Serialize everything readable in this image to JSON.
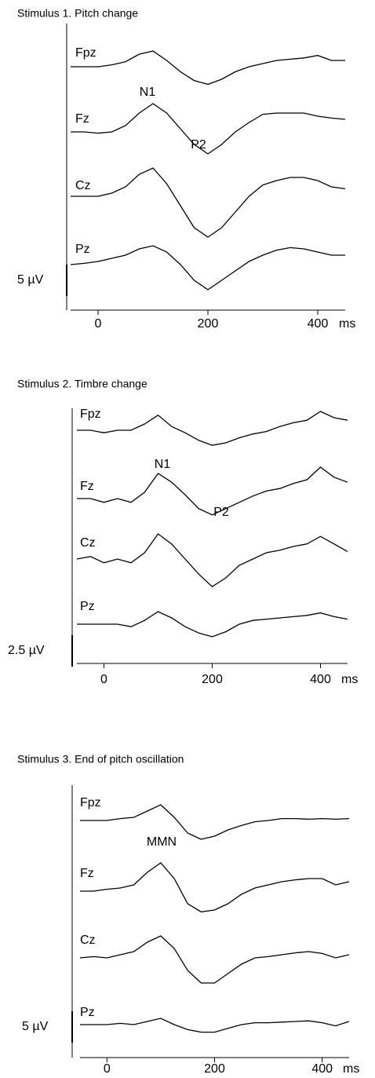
{
  "chart_data": [
    {
      "type": "line",
      "title": "Stimulus 1. Pitch change",
      "x_label": "ms",
      "y_inverted": true,
      "color": "#000000",
      "xlim": [
        -50,
        450
      ],
      "xticks": [
        0,
        200,
        400
      ],
      "scale_bar": {
        "value": 5,
        "label": "5 µV"
      },
      "annotations": [
        "N1",
        "P2"
      ],
      "x": [
        -50,
        -25,
        0,
        25,
        50,
        75,
        100,
        125,
        150,
        175,
        200,
        225,
        250,
        275,
        300,
        325,
        350,
        375,
        400,
        425,
        450
      ],
      "series": [
        {
          "name": "Fpz",
          "values": [
            0,
            0,
            0,
            -0.3,
            -0.8,
            -2,
            -2.5,
            -1,
            0.8,
            2.2,
            2.8,
            2,
            0.8,
            0,
            -0.5,
            -1,
            -1.2,
            -1.4,
            -1.8,
            -1,
            -1
          ]
        },
        {
          "name": "Fz",
          "values": [
            0,
            0,
            0.2,
            0,
            -1,
            -3,
            -4.5,
            -3,
            -0.5,
            2,
            3.5,
            2,
            0,
            -1.5,
            -2.8,
            -3,
            -3,
            -3,
            -2.5,
            -2.2,
            -2
          ]
        },
        {
          "name": "Cz",
          "values": [
            0,
            0,
            0,
            -0.5,
            -1.5,
            -3.5,
            -4.5,
            -2,
            1.5,
            5,
            6.5,
            5,
            2.5,
            0,
            -1.8,
            -2.5,
            -3,
            -3,
            -2.5,
            -1.5,
            -1.2
          ]
        },
        {
          "name": "Pz",
          "values": [
            0.5,
            0.3,
            0,
            -0.5,
            -1,
            -2,
            -2.5,
            -1.5,
            0.5,
            3,
            4.5,
            3,
            1.5,
            0,
            -1,
            -1.8,
            -2.2,
            -2,
            -1.5,
            -1,
            -1
          ]
        }
      ]
    },
    {
      "type": "line",
      "title": "Stimulus 2. Timbre change",
      "x_label": "ms",
      "y_inverted": true,
      "color": "#000000",
      "xlim": [
        -50,
        450
      ],
      "xticks": [
        0,
        200,
        400
      ],
      "scale_bar": {
        "value": 2.5,
        "label": "2.5 µV"
      },
      "annotations": [
        "N1",
        "P2"
      ],
      "x": [
        -50,
        -25,
        0,
        25,
        50,
        75,
        100,
        125,
        150,
        175,
        200,
        225,
        250,
        275,
        300,
        325,
        350,
        375,
        400,
        425,
        450
      ],
      "series": [
        {
          "name": "Fpz",
          "values": [
            0,
            0,
            0.2,
            0,
            0,
            -0.5,
            -1.2,
            -0.3,
            0.2,
            0.8,
            1.2,
            1,
            0.6,
            0.3,
            0.1,
            -0.3,
            -0.6,
            -0.8,
            -1.5,
            -1,
            -0.8
          ]
        },
        {
          "name": "Fz",
          "values": [
            0,
            0,
            0.3,
            0,
            0.3,
            -0.5,
            -2,
            -1.3,
            -0.3,
            0.8,
            1.3,
            0.8,
            0.3,
            -0.2,
            -0.6,
            -0.8,
            -1.2,
            -1.5,
            -2.5,
            -1.7,
            -1.3
          ]
        },
        {
          "name": "Cz",
          "values": [
            0,
            -0.2,
            0.3,
            0,
            0.3,
            -0.5,
            -2,
            -1.2,
            0,
            1.2,
            2.2,
            1.5,
            0.5,
            0,
            -0.5,
            -0.7,
            -1,
            -1.2,
            -1.8,
            -1.2,
            -0.6
          ]
        },
        {
          "name": "Pz",
          "values": [
            0,
            0,
            0,
            0,
            0.2,
            -0.3,
            -1,
            -0.5,
            0.2,
            0.7,
            1,
            0.6,
            0,
            -0.3,
            -0.4,
            -0.5,
            -0.6,
            -0.7,
            -0.9,
            -0.6,
            -0.4
          ]
        }
      ]
    },
    {
      "type": "line",
      "title": "Stimulus 3. End of pitch oscillation",
      "x_label": "ms",
      "y_inverted": true,
      "color": "#000000",
      "xlim": [
        -50,
        450
      ],
      "xticks": [
        0,
        200,
        400
      ],
      "scale_bar": {
        "value": 5,
        "label": "5 µV"
      },
      "annotations": [
        "MMN"
      ],
      "x": [
        -50,
        -25,
        0,
        25,
        50,
        75,
        100,
        125,
        150,
        175,
        200,
        225,
        250,
        275,
        300,
        325,
        350,
        375,
        400,
        425,
        450
      ],
      "series": [
        {
          "name": "Fpz",
          "values": [
            0,
            0,
            0,
            -0.3,
            -0.5,
            -1.5,
            -2.5,
            -0.5,
            2,
            3,
            2.5,
            1.5,
            0.8,
            0.2,
            0,
            -0.3,
            -0.3,
            -0.2,
            -0.3,
            -0.2,
            -0.3
          ]
        },
        {
          "name": "Fz",
          "values": [
            0,
            0,
            -0.3,
            -0.5,
            -1,
            -3,
            -4.5,
            -2,
            2,
            3.3,
            3,
            2,
            0.5,
            -0.5,
            -1,
            -1.5,
            -1.8,
            -2,
            -2,
            -1,
            -1.5
          ]
        },
        {
          "name": "Cz",
          "values": [
            0,
            -0.2,
            0,
            -0.5,
            -1,
            -2.5,
            -3.5,
            -1.5,
            2,
            4,
            4,
            2.5,
            1,
            0,
            -0.2,
            -0.5,
            -0.8,
            -1,
            -0.7,
            0,
            -0.5
          ]
        },
        {
          "name": "Pz",
          "values": [
            0,
            0,
            0,
            -0.2,
            0,
            -0.5,
            -1,
            0,
            0.8,
            1.2,
            1.2,
            0.6,
            0,
            -0.3,
            -0.3,
            -0.4,
            -0.5,
            -0.6,
            -0.3,
            0.2,
            -0.5
          ]
        }
      ]
    }
  ]
}
